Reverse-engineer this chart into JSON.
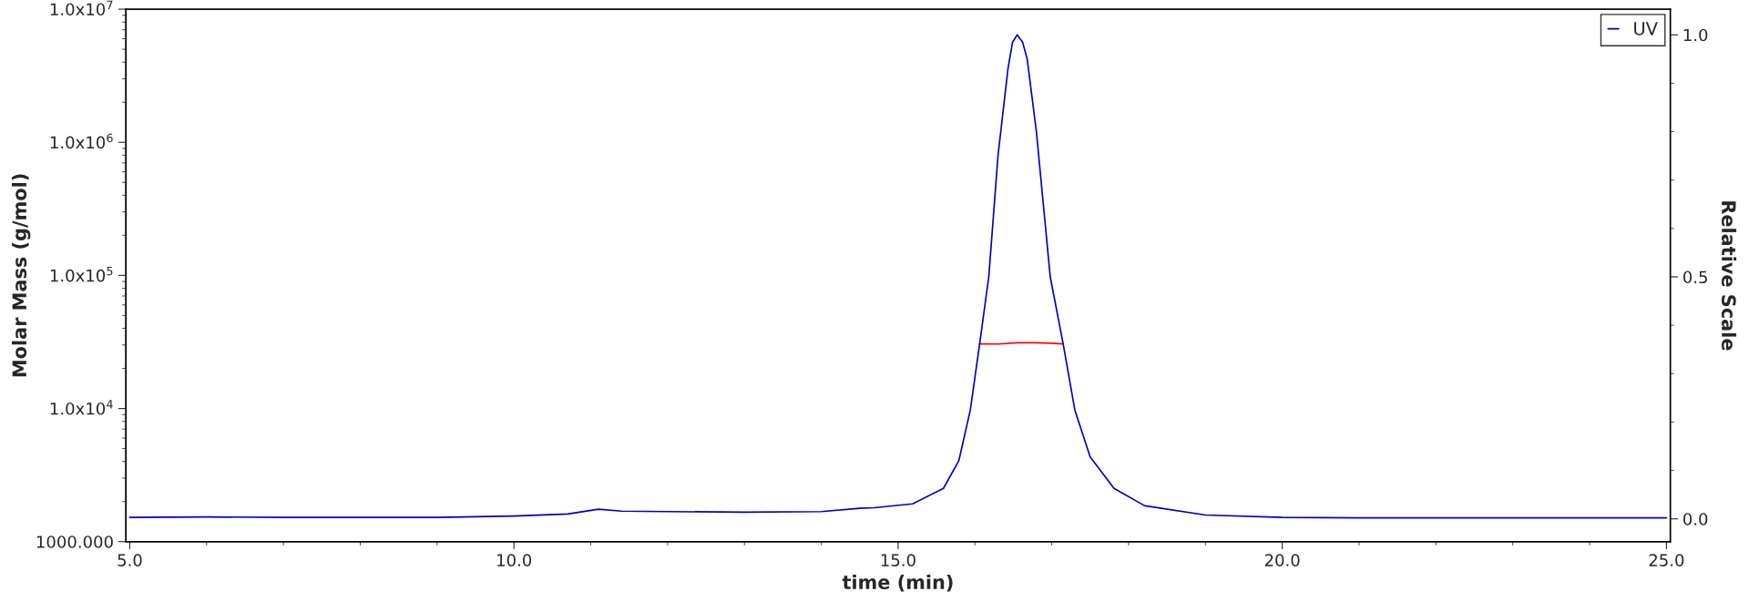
{
  "chart_data": {
    "type": "line",
    "xlabel": "time (min)",
    "ylabel": "Molar Mass (g/mol)",
    "y2label": "Relative Scale",
    "log": "y",
    "xlim": [
      4.95,
      25.05
    ],
    "xticks": [
      {
        "value": 5,
        "label": "5.0"
      },
      {
        "value": 10,
        "label": "10.0"
      },
      {
        "value": 15,
        "label": "15.0"
      },
      {
        "value": 20,
        "label": "20.0"
      },
      {
        "value": 25,
        "label": "25.0"
      }
    ],
    "ylim": [
      1000,
      10000000
    ],
    "yticks": [
      {
        "value": 1000,
        "label": "1000.000"
      },
      {
        "value": 10000,
        "label": "1.0x10$^{4}$"
      },
      {
        "value": 100000,
        "label": "1.0x10$^{5}$"
      },
      {
        "value": 1000000,
        "label": "1.0x10$^{6}$"
      },
      {
        "value": 10000000,
        "label": "1.0x10$^{7}$"
      }
    ],
    "y2lim": [
      -0.047,
      1.053
    ],
    "y2ticks": [
      {
        "value": 0,
        "label": "0.0"
      },
      {
        "value": 0.5,
        "label": "0.5"
      },
      {
        "value": 1,
        "label": "1.0"
      }
    ],
    "grid": false,
    "legend": "top right",
    "series": [
      {
        "name": "UV",
        "color": "#0000c0",
        "axis": "y2",
        "x": [
          5,
          6,
          7,
          8,
          9,
          10,
          10.7,
          11.1,
          11.4,
          12,
          13,
          14,
          14.5,
          14.69,
          15.19,
          15.59,
          15.79,
          15.94,
          16.06,
          16.18,
          16.3,
          16.43,
          16.49,
          16.55,
          16.62,
          16.68,
          16.8,
          16.98,
          17.15,
          17.3,
          17.5,
          17.81,
          18.21,
          19,
          20,
          21,
          22,
          23,
          24,
          25
        ],
        "values": [
          0.003,
          0.004,
          0.003,
          0.003,
          0.003,
          0.006,
          0.01,
          0.02,
          0.016,
          0.015,
          0.014,
          0.015,
          0.022,
          0.023,
          0.031,
          0.063,
          0.12,
          0.225,
          0.36,
          0.5,
          0.75,
          0.93,
          0.985,
          1.0,
          0.985,
          0.95,
          0.8,
          0.5,
          0.36,
          0.225,
          0.128,
          0.063,
          0.027,
          0.008,
          0.003,
          0.002,
          0.002,
          0.002,
          0.002,
          0.002
        ]
      },
      {
        "color": "#ff0000",
        "x": [
          16.06,
          16.3,
          16.55,
          16.8,
          17.0,
          17.15
        ],
        "values": [
          30600,
          30500,
          31200,
          31200,
          30900,
          30600
        ]
      }
    ]
  }
}
